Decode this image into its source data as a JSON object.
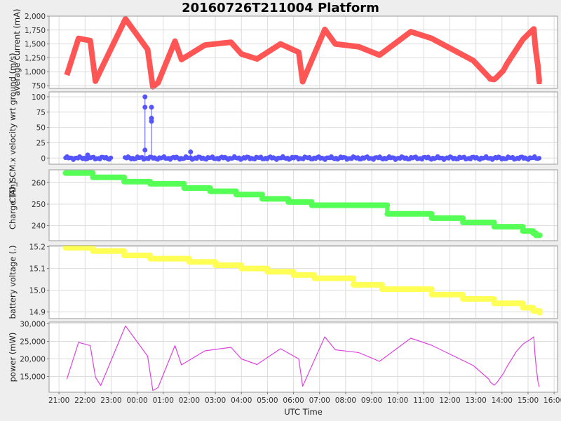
{
  "chart_title": "20160726T211004 Platform",
  "chart_data": {
    "type": "line",
    "title": "20160726T211004 Platform",
    "xlabel": "UTC Time",
    "x_tick_labels": [
      "21:00",
      "22:00",
      "23:00",
      "00:00",
      "01:00",
      "02:00",
      "03:00",
      "04:00",
      "05:00",
      "06:00",
      "07:00",
      "08:00",
      "09:00",
      "10:00",
      "11:00",
      "12:00",
      "13:00",
      "14:00",
      "15:00",
      "16:00"
    ],
    "xlim_hours": [
      20.62,
      40.13
    ],
    "panels": [
      {
        "ylabel": "average current (mA)",
        "ylim": [
          700,
          2000
        ],
        "y_ticks": [
          750,
          1000,
          1250,
          1500,
          1750,
          2000
        ],
        "y_tick_labels": [
          "750",
          "1,000",
          "1,250",
          "1,500",
          "1,750",
          "2,000"
        ],
        "color": "#ff5555",
        "style": "thick",
        "x": [
          21.3,
          21.75,
          22.2,
          22.4,
          22.6,
          23.55,
          24.4,
          24.6,
          24.8,
          25.45,
          25.7,
          26.6,
          27.6,
          28.0,
          28.6,
          29.5,
          30.2,
          30.35,
          31.2,
          31.6,
          32.5,
          33.3,
          34.5,
          35.3,
          36.9,
          37.5,
          37.55,
          37.7,
          37.8,
          38.05,
          38.2,
          38.55,
          38.8,
          39.1,
          39.22,
          39.27,
          39.32,
          39.38,
          39.43
        ],
        "y": [
          940,
          1600,
          1560,
          830,
          1030,
          1950,
          1400,
          730,
          800,
          1550,
          1220,
          1480,
          1530,
          1320,
          1230,
          1500,
          1350,
          820,
          1760,
          1500,
          1450,
          1300,
          1720,
          1600,
          1200,
          900,
          870,
          860,
          900,
          1020,
          1150,
          1400,
          1580,
          1720,
          1770,
          1500,
          1300,
          1100,
          820
        ]
      },
      {
        "ylabel": "CTD_SCM.x velocity wrt ground (m/s)",
        "ylim": [
          -10,
          108
        ],
        "y_ticks": [
          0,
          25,
          50,
          75,
          100
        ],
        "y_tick_labels": [
          "0",
          "25",
          "50",
          "75",
          "100"
        ],
        "color": "#5555ff",
        "style": "points",
        "x_start": 21.25,
        "x_end": 39.45,
        "gaps": [
          [
            23.0,
            23.5
          ]
        ],
        "y_base": 0,
        "spikes": [
          {
            "x": 24.3,
            "values": [
              100,
              83,
              13
            ]
          },
          {
            "x": 24.55,
            "values": [
              83,
              65,
              60
            ]
          },
          {
            "x": 22.1,
            "values": [
              5
            ]
          },
          {
            "x": 26.05,
            "values": [
              10
            ]
          }
        ]
      },
      {
        "ylabel": "Charge (Ah)",
        "ylim": [
          233,
          266
        ],
        "y_ticks": [
          240,
          250,
          260
        ],
        "y_tick_labels": [
          "240",
          "250",
          "260"
        ],
        "color": "#55ff55",
        "style": "steps",
        "x": [
          21.25,
          22.3,
          23.5,
          24.5,
          25.8,
          26.8,
          27.8,
          28.8,
          29.8,
          30.7,
          31.5,
          33.2,
          33.6,
          34.2,
          35.3,
          36.5,
          37.7,
          38.8,
          39.2,
          39.3,
          39.45
        ],
        "y": [
          264.5,
          262.5,
          260.5,
          259.5,
          257.5,
          256,
          254.5,
          252.5,
          251,
          249.5,
          249.5,
          249.5,
          245.5,
          245.5,
          243.5,
          241.5,
          239.5,
          237.5,
          236.5,
          235.5,
          235.3
        ]
      },
      {
        "ylabel": "battery voltage (.)",
        "ylim": [
          14.87,
          15.205
        ],
        "y_ticks": [
          14.9,
          15.0,
          15.1,
          15.2
        ],
        "y_tick_labels": [
          "14.9",
          "15.0",
          "15.1",
          "15.2"
        ],
        "color": "#ffff55",
        "style": "steps",
        "x": [
          21.25,
          22.3,
          23.5,
          24.5,
          26.0,
          27.0,
          28.0,
          29.0,
          30.0,
          30.8,
          32.3,
          33.4,
          35.3,
          36.5,
          37.7,
          38.8,
          39.2,
          39.45
        ],
        "y": [
          15.195,
          15.18,
          15.16,
          15.145,
          15.13,
          15.115,
          15.1,
          15.085,
          15.07,
          15.055,
          15.025,
          15.005,
          14.98,
          14.96,
          14.94,
          14.92,
          14.905,
          14.885
        ]
      },
      {
        "ylabel": "power (mW)",
        "ylim": [
          10500,
          30500
        ],
        "y_ticks": [
          15000,
          20000,
          25000,
          30000
        ],
        "y_tick_labels": [
          "15,000",
          "20,000",
          "25,000",
          "30,000"
        ],
        "color": "#dd44dd",
        "style": "line",
        "x": [
          21.3,
          21.75,
          22.2,
          22.4,
          22.6,
          23.55,
          24.4,
          24.6,
          24.8,
          25.45,
          25.7,
          26.6,
          27.6,
          28.0,
          28.6,
          29.5,
          30.2,
          30.35,
          31.2,
          31.6,
          32.5,
          33.3,
          34.5,
          35.3,
          36.9,
          37.5,
          37.55,
          37.7,
          37.8,
          38.05,
          38.2,
          38.55,
          38.8,
          39.1,
          39.22,
          39.27,
          39.32,
          39.38,
          39.43
        ],
        "y": [
          14200,
          24700,
          23800,
          14800,
          12400,
          29400,
          20800,
          11000,
          11800,
          23800,
          18300,
          22300,
          23300,
          20000,
          18400,
          22900,
          20000,
          12200,
          26300,
          22600,
          21800,
          19300,
          25900,
          23900,
          18100,
          14200,
          13400,
          12500,
          13200,
          15800,
          17900,
          22100,
          24200,
          25600,
          26300,
          21000,
          17200,
          13600,
          12000
        ]
      }
    ]
  }
}
